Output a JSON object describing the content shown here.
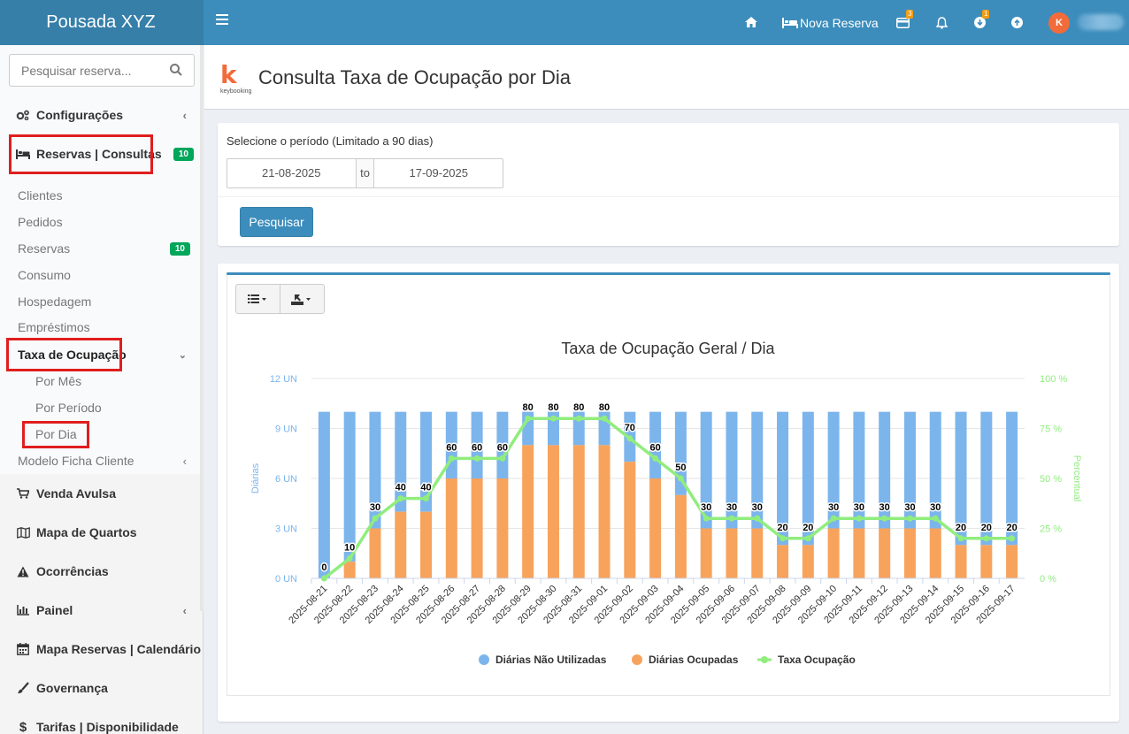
{
  "app": {
    "brand": "Pousada XYZ",
    "nav": {
      "nova_reserva": "Nova Reserva",
      "cards_badge": "3",
      "download_badge": "1",
      "avatar_letter": "K"
    }
  },
  "sidebar": {
    "search_placeholder": "Pesquisar reserva...",
    "items": [
      {
        "label": "Configurações"
      },
      {
        "label": "Reservas | Consultas",
        "count": "10"
      },
      {
        "label": "Clientes"
      },
      {
        "label": "Pedidos"
      },
      {
        "label": "Reservas",
        "count": "10"
      },
      {
        "label": "Consumo"
      },
      {
        "label": "Hospedagem"
      },
      {
        "label": "Empréstimos"
      },
      {
        "label": "Taxa de Ocupação"
      },
      {
        "label": "Por Mês"
      },
      {
        "label": "Por Período"
      },
      {
        "label": "Por Dia"
      },
      {
        "label": "Modelo Ficha Cliente"
      },
      {
        "label": "Venda Avulsa"
      },
      {
        "label": "Mapa de Quartos"
      },
      {
        "label": "Ocorrências"
      },
      {
        "label": "Painel"
      },
      {
        "label": "Mapa Reservas | Calendário"
      },
      {
        "label": "Governança"
      },
      {
        "label": "Tarifas | Disponibilidade"
      }
    ]
  },
  "page": {
    "logo_text": "keybooking",
    "title": "Consulta Taxa de Ocupação por Dia",
    "filter": {
      "label": "Selecione o período (Limitado a 90 dias)",
      "date_from": "21-08-2025",
      "to_label": "to",
      "date_to": "17-09-2025",
      "search_button": "Pesquisar"
    }
  },
  "colors": {
    "primary": "#3c8dbc",
    "unused": "#7cb5ec",
    "occupied": "#f7a35c",
    "rate": "#90ed7d",
    "badge_green": "#00a65a",
    "highlight_red": "#e01e1e"
  },
  "chart_data": {
    "type": "bar",
    "title": "Taxa de Ocupação Geral / Dia",
    "ylabel": "Diárias",
    "ylabel_right": "Percentual",
    "ylim": [
      0,
      12
    ],
    "yticks": [
      "0 UN",
      "3 UN",
      "6 UN",
      "9 UN",
      "12 UN"
    ],
    "ylim_right": [
      0,
      100
    ],
    "yticks_right": [
      "0 %",
      "25 %",
      "50 %",
      "75 %",
      "100 %"
    ],
    "stacked": true,
    "categories": [
      "2025-08-21",
      "2025-08-22",
      "2025-08-23",
      "2025-08-24",
      "2025-08-25",
      "2025-08-26",
      "2025-08-27",
      "2025-08-28",
      "2025-08-29",
      "2025-08-30",
      "2025-08-31",
      "2025-09-01",
      "2025-09-02",
      "2025-09-03",
      "2025-09-04",
      "2025-09-05",
      "2025-09-06",
      "2025-09-07",
      "2025-09-08",
      "2025-09-09",
      "2025-09-10",
      "2025-09-11",
      "2025-09-12",
      "2025-09-13",
      "2025-09-14",
      "2025-09-15",
      "2025-09-16",
      "2025-09-17"
    ],
    "series": [
      {
        "name": "Diárias Não Utilizadas",
        "values": [
          10,
          9,
          7,
          6,
          6,
          4,
          4,
          4,
          2,
          2,
          2,
          2,
          3,
          4,
          5,
          7,
          7,
          7,
          8,
          8,
          7,
          7,
          7,
          7,
          7,
          8,
          8,
          8
        ]
      },
      {
        "name": "Diárias Ocupadas",
        "values": [
          0,
          1,
          3,
          4,
          4,
          6,
          6,
          6,
          8,
          8,
          8,
          8,
          7,
          6,
          5,
          3,
          3,
          3,
          2,
          2,
          3,
          3,
          3,
          3,
          3,
          2,
          2,
          2
        ]
      },
      {
        "name": "Taxa Ocupação",
        "values": [
          0,
          10,
          30,
          40,
          40,
          60,
          60,
          60,
          80,
          80,
          80,
          80,
          70,
          60,
          50,
          30,
          30,
          30,
          20,
          20,
          30,
          30,
          30,
          30,
          30,
          20,
          20,
          20
        ]
      }
    ],
    "legend_position": "bottom-center"
  }
}
